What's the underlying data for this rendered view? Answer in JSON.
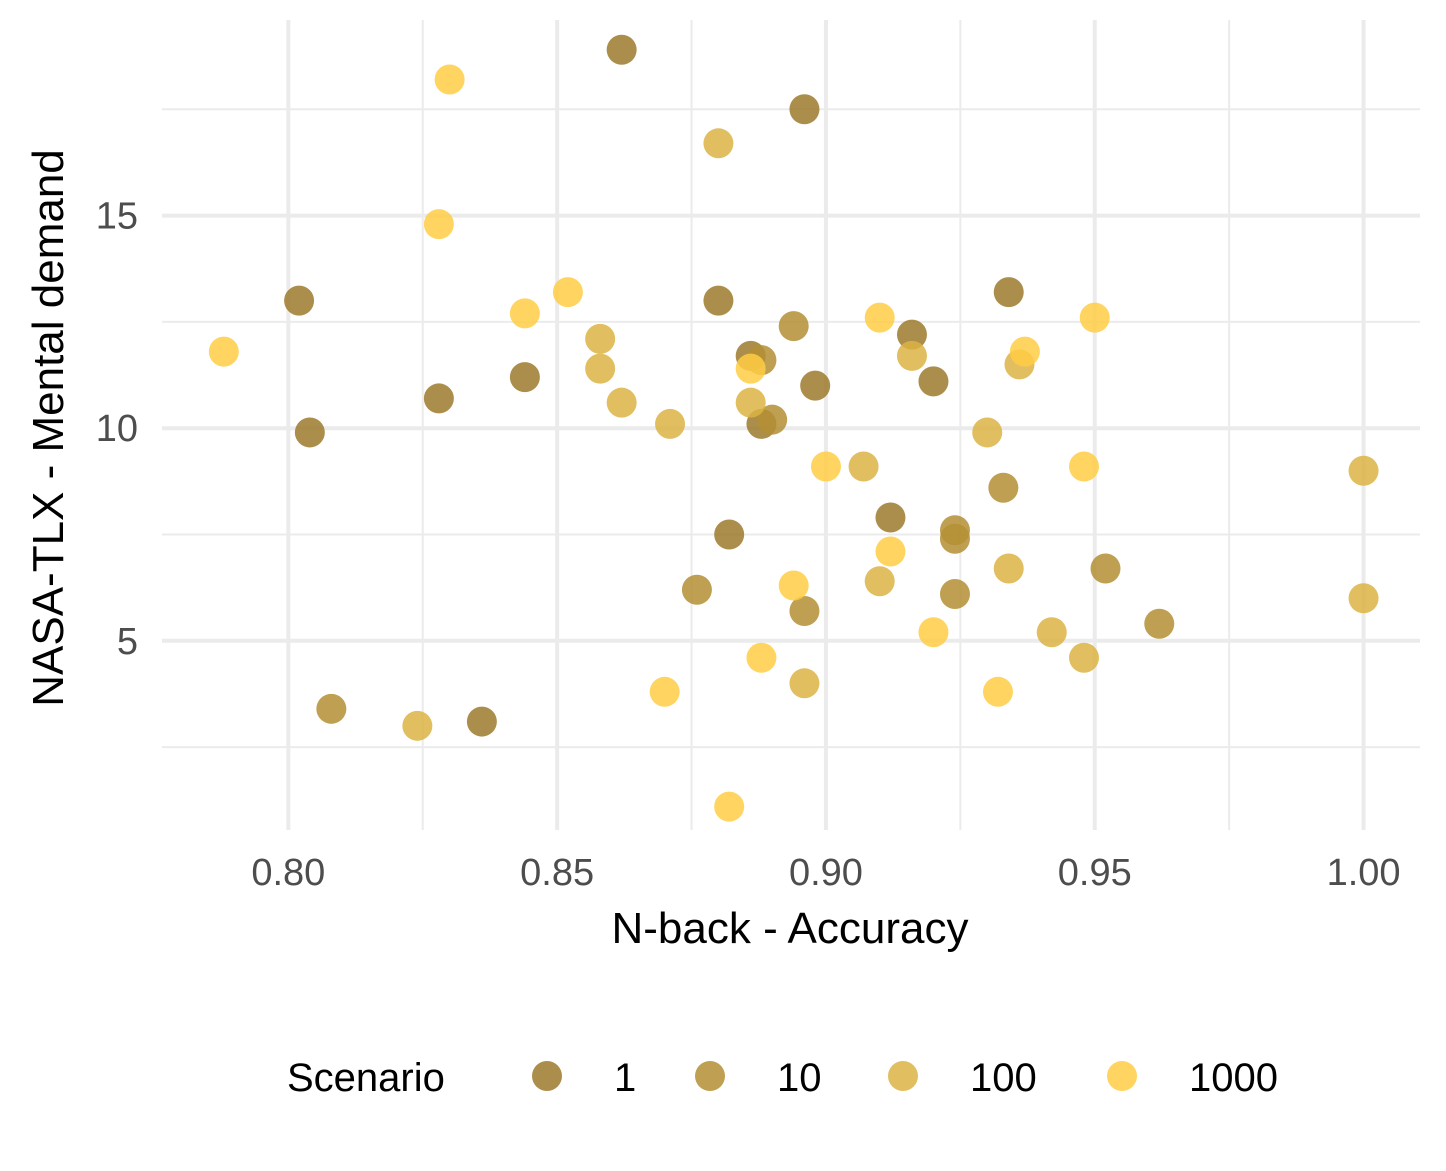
{
  "chart_data": {
    "type": "scatter",
    "title": "",
    "xlabel": "N-back - Accuracy",
    "ylabel": "NASA-TLX - Mental demand",
    "xlim": [
      0.7765,
      1.0105
    ],
    "ylim": [
      0.55,
      19.6
    ],
    "x_ticks": [
      0.8,
      0.85,
      0.9,
      0.95,
      1.0
    ],
    "x_tick_labels": [
      "0.80",
      "0.85",
      "0.90",
      "0.95",
      "1.00"
    ],
    "x_minor": [
      0.825,
      0.875,
      0.925,
      0.975
    ],
    "y_ticks": [
      5,
      10,
      15
    ],
    "y_tick_labels": [
      "5",
      "10",
      "15"
    ],
    "y_minor": [
      2.5,
      7.5,
      12.5,
      17.5
    ],
    "grid": true,
    "legend": {
      "title": "Scenario",
      "position": "bottom"
    },
    "series": [
      {
        "name": "1",
        "color": "#9c7a2c",
        "points": [
          [
            0.862,
            18.9
          ],
          [
            0.896,
            17.5
          ],
          [
            0.802,
            13.0
          ],
          [
            0.934,
            13.2
          ],
          [
            0.88,
            13.0
          ],
          [
            0.916,
            12.2
          ],
          [
            0.844,
            11.2
          ],
          [
            0.886,
            11.7
          ],
          [
            0.898,
            11.0
          ],
          [
            0.92,
            11.1
          ],
          [
            0.828,
            10.7
          ],
          [
            0.804,
            9.9
          ],
          [
            0.888,
            10.1
          ],
          [
            0.912,
            7.9
          ],
          [
            0.882,
            7.5
          ],
          [
            0.836,
            3.1
          ]
        ]
      },
      {
        "name": "10",
        "color": "#b48f34",
        "points": [
          [
            0.894,
            12.4
          ],
          [
            0.888,
            11.6
          ],
          [
            0.89,
            10.2
          ],
          [
            0.933,
            8.6
          ],
          [
            0.924,
            7.6
          ],
          [
            0.924,
            7.4
          ],
          [
            0.952,
            6.7
          ],
          [
            0.876,
            6.2
          ],
          [
            0.924,
            6.1
          ],
          [
            0.896,
            5.7
          ],
          [
            0.962,
            5.4
          ],
          [
            0.808,
            3.4
          ]
        ]
      },
      {
        "name": "100",
        "color": "#dcb344",
        "points": [
          [
            0.88,
            16.7
          ],
          [
            0.858,
            12.1
          ],
          [
            0.916,
            11.7
          ],
          [
            0.858,
            11.4
          ],
          [
            0.936,
            11.5
          ],
          [
            0.862,
            10.6
          ],
          [
            0.886,
            10.6
          ],
          [
            0.871,
            10.1
          ],
          [
            0.93,
            9.9
          ],
          [
            0.907,
            9.1
          ],
          [
            1.0,
            9.0
          ],
          [
            0.934,
            6.7
          ],
          [
            0.91,
            6.4
          ],
          [
            1.0,
            6.0
          ],
          [
            0.942,
            5.2
          ],
          [
            0.948,
            4.6
          ],
          [
            0.896,
            4.0
          ],
          [
            0.824,
            3.0
          ]
        ]
      },
      {
        "name": "1000",
        "color": "#ffcc44",
        "points": [
          [
            0.83,
            18.2
          ],
          [
            0.828,
            14.8
          ],
          [
            0.852,
            13.2
          ],
          [
            0.844,
            12.7
          ],
          [
            0.91,
            12.6
          ],
          [
            0.95,
            12.6
          ],
          [
            0.788,
            11.8
          ],
          [
            0.937,
            11.8
          ],
          [
            0.886,
            11.4
          ],
          [
            0.9,
            9.1
          ],
          [
            0.948,
            9.1
          ],
          [
            0.912,
            7.1
          ],
          [
            0.894,
            6.3
          ],
          [
            0.92,
            5.2
          ],
          [
            0.888,
            4.6
          ],
          [
            0.87,
            3.8
          ],
          [
            0.932,
            3.8
          ],
          [
            0.882,
            1.1
          ]
        ]
      }
    ]
  }
}
